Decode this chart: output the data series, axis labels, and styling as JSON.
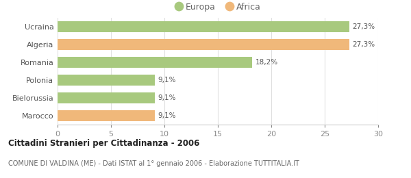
{
  "categories": [
    "Ucraina",
    "Algeria",
    "Romania",
    "Polonia",
    "Bielorussia",
    "Marocco"
  ],
  "values": [
    27.3,
    27.3,
    18.2,
    9.1,
    9.1,
    9.1
  ],
  "labels": [
    "27,3%",
    "27,3%",
    "18,2%",
    "9,1%",
    "9,1%",
    "9,1%"
  ],
  "colors": [
    "#a8c97e",
    "#f0b87a",
    "#a8c97e",
    "#a8c97e",
    "#a8c97e",
    "#f0b87a"
  ],
  "europa_color": "#a8c97e",
  "africa_color": "#f0b87a",
  "xlim": [
    0,
    30
  ],
  "xticks": [
    0,
    5,
    10,
    15,
    20,
    25,
    30
  ],
  "title_bold": "Cittadini Stranieri per Cittadinanza - 2006",
  "subtitle": "COMUNE DI VALDINA (ME) - Dati ISTAT al 1° gennaio 2006 - Elaborazione TUTTITALIA.IT",
  "background_color": "#ffffff",
  "bar_height": 0.62,
  "legend_europa": "Europa",
  "legend_africa": "Africa",
  "label_fontsize": 7.5,
  "ytick_fontsize": 8,
  "xtick_fontsize": 8
}
